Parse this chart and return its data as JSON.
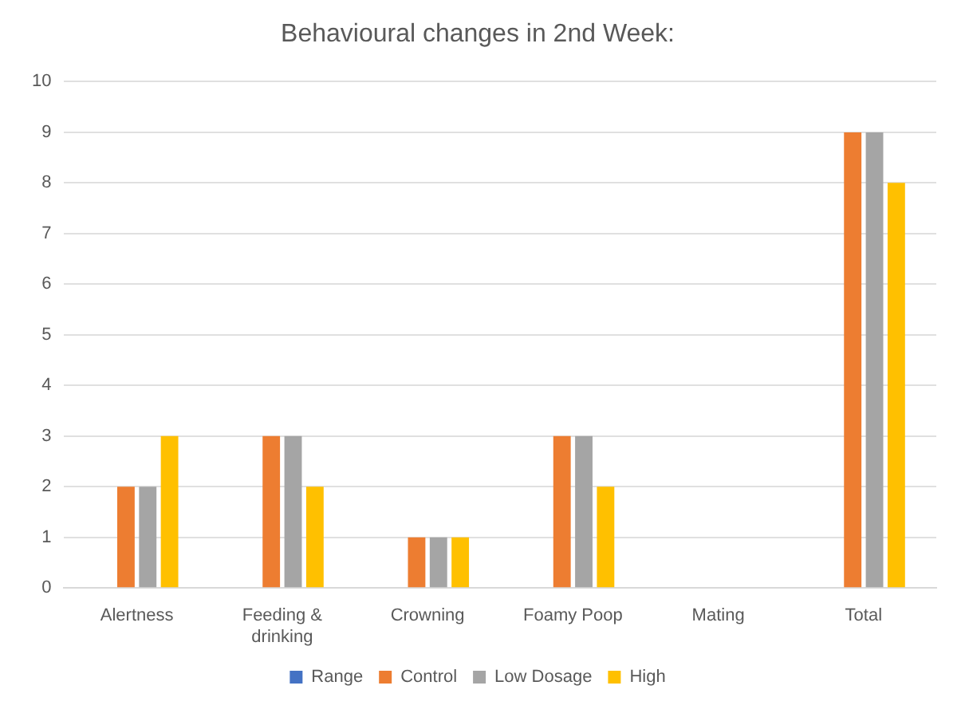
{
  "chart_data": {
    "type": "bar",
    "title": "Behavioural changes in 2nd Week:",
    "categories": [
      "Alertness",
      "Feeding & drinking",
      "Crowning",
      "Foamy Poop",
      "Mating",
      "Total"
    ],
    "series": [
      {
        "name": "Range",
        "color": "#4472c4",
        "values": [
          0,
          0,
          0,
          0,
          0,
          0
        ]
      },
      {
        "name": "Control",
        "color": "#ed7d31",
        "values": [
          2,
          3,
          1,
          3,
          0,
          9
        ]
      },
      {
        "name": "Low Dosage",
        "color": "#a5a5a5",
        "values": [
          2,
          3,
          1,
          3,
          0,
          9
        ]
      },
      {
        "name": "High",
        "color": "#ffc000",
        "values": [
          3,
          2,
          1,
          2,
          0,
          8
        ]
      }
    ],
    "ylim": [
      0,
      10
    ],
    "yticks": [
      0,
      1,
      2,
      3,
      4,
      5,
      6,
      7,
      8,
      9,
      10
    ],
    "grid": "y",
    "legend": "bottom"
  }
}
